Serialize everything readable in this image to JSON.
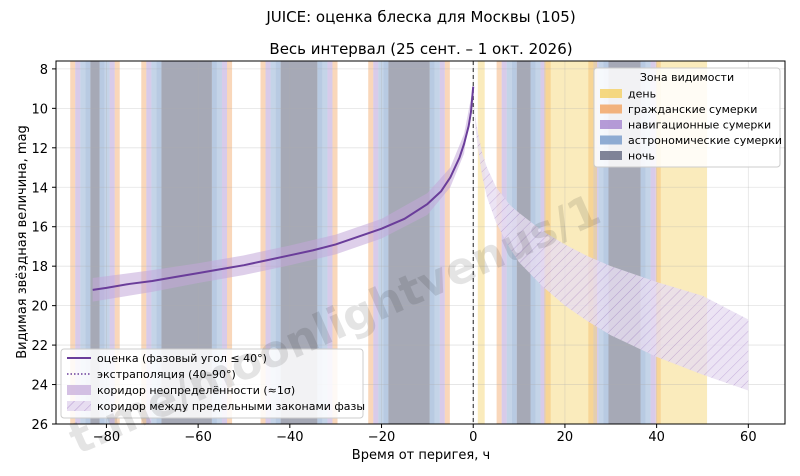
{
  "chart_data": {
    "type": "line",
    "suptitle": "JUICE: оценка блеска для Москвы (105)",
    "title": "Весь интервал (25 сент. – 1 окт. 2026)",
    "xlabel": "Время от перигея, ч",
    "ylabel": "Видимая звёздная величина, mag",
    "xlim": [
      -91,
      68
    ],
    "ylim": [
      26,
      7.6
    ],
    "y_inverted": true,
    "xticks": [
      -80,
      -60,
      -40,
      -20,
      0,
      20,
      40,
      60
    ],
    "yticks": [
      8,
      10,
      12,
      14,
      16,
      18,
      20,
      22,
      24,
      26
    ],
    "grid": true,
    "perigee_line_x": 0,
    "zones": {
      "colors": {
        "day": "#f5d26b",
        "civil": "#f2a766",
        "nautical": "#a98bd0",
        "astro": "#7d9fcb",
        "night": "#6b7086"
      },
      "nights": [
        {
          "center": -82.5,
          "half_night": 1.0
        },
        {
          "center": -62.5,
          "half_night": 5.5
        },
        {
          "center": -38.0,
          "half_night": 4.0
        },
        {
          "center": -14.0,
          "half_night": 4.5
        },
        {
          "center": 11.0,
          "half_night": 1.5
        },
        {
          "center": 33.0,
          "half_night": 3.5
        }
      ],
      "day_intervals": [
        [
          1.0,
          2.5
        ],
        [
          15.5,
          27.0
        ],
        [
          40.0,
          51.0
        ]
      ]
    },
    "series": [
      {
        "name": "оценка (фазовый угол ≤ 40°)",
        "color": "#6a3d9a",
        "x": [
          -83,
          -80,
          -75,
          -70,
          -65,
          -60,
          -55,
          -50,
          -45,
          -40,
          -35,
          -30,
          -25,
          -20,
          -15,
          -10,
          -7,
          -5,
          -3,
          -2,
          -1,
          -0.5,
          0
        ],
        "y": [
          19.2,
          19.1,
          18.9,
          18.75,
          18.55,
          18.35,
          18.15,
          17.95,
          17.7,
          17.45,
          17.2,
          16.9,
          16.5,
          16.1,
          15.6,
          14.85,
          14.2,
          13.5,
          12.5,
          11.8,
          10.9,
          10.2,
          8.9
        ]
      }
    ],
    "uncertainty_band": {
      "name": "коридор неопределённости (≈1σ)",
      "color": "#c3a7d9",
      "x": [
        -83,
        -70,
        -60,
        -50,
        -40,
        -30,
        -20,
        -10,
        -5,
        -2,
        0
      ],
      "y_low": [
        18.6,
        18.2,
        17.85,
        17.45,
        16.95,
        16.4,
        15.6,
        14.3,
        13.0,
        11.3,
        8.9
      ],
      "y_high": [
        19.8,
        19.3,
        18.85,
        18.45,
        17.95,
        17.4,
        16.6,
        15.4,
        14.0,
        12.3,
        8.9
      ]
    },
    "phase_law_band": {
      "name": "коридор между предельными законами фазы",
      "color": "#cdbfe3",
      "x": [
        0,
        0.5,
        1,
        2,
        3,
        5,
        8,
        10,
        15,
        20,
        25,
        30,
        40,
        50,
        60
      ],
      "y_low": [
        9.3,
        10.5,
        11.2,
        12.3,
        13.0,
        14.0,
        14.9,
        15.3,
        16.2,
        16.9,
        17.5,
        18.0,
        18.8,
        19.5,
        20.7
      ],
      "y_high": [
        9.3,
        11.0,
        12.0,
        13.5,
        14.5,
        15.8,
        17.1,
        17.8,
        19.0,
        20.0,
        20.8,
        21.5,
        22.6,
        23.5,
        24.3
      ]
    },
    "extrapolation": {
      "name": "экстраполяция (40–90°)",
      "color": "#6a3d9a"
    },
    "visibility_legend": {
      "title": "Зона видимости",
      "placement": "top-right",
      "items": [
        {
          "label": "день",
          "color": "#f5d26b"
        },
        {
          "label": "гражданские сумерки",
          "color": "#f2a766"
        },
        {
          "label": "навигационные сумерки",
          "color": "#a98bd0"
        },
        {
          "label": "астрономические сумерки",
          "color": "#7d9fcb"
        },
        {
          "label": "ночь",
          "color": "#6b7086"
        }
      ]
    },
    "series_legend": {
      "placement": "bottom-left",
      "items": [
        {
          "label": "оценка (фазовый угол ≤ 40°)",
          "kind": "solid"
        },
        {
          "label": "экстраполяция (40–90°)",
          "kind": "dotted"
        },
        {
          "label": "коридор неопределённости (≈1σ)",
          "kind": "band"
        },
        {
          "label": "коридор между предельными законами фазы",
          "kind": "hatch"
        }
      ]
    },
    "watermark": "t.me/moonlightvenus/1"
  }
}
